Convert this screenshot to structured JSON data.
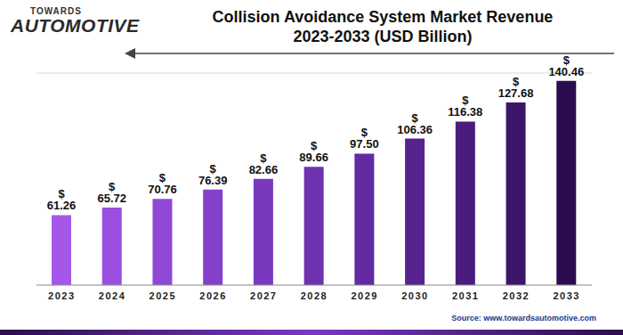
{
  "chart_data": {
    "type": "bar",
    "title": "Collision Avoidance System Market Revenue\n2023-2033 (USD Billion)",
    "logo": [
      "TOWARDS",
      "AUTOMOTIVE"
    ],
    "source": "Source: www.towardsautomotive.com",
    "categories": [
      "2023",
      "2024",
      "2025",
      "2026",
      "2027",
      "2028",
      "2029",
      "2030",
      "2031",
      "2032",
      "2033"
    ],
    "values": [
      61.26,
      65.72,
      70.76,
      76.39,
      82.66,
      89.66,
      97.5,
      106.36,
      116.38,
      127.68,
      140.46
    ],
    "value_labels": [
      "$ 61.26",
      "$ 65.72",
      "$ 70.76",
      "$ 76.39",
      "$ 82.66",
      "$ 89.66",
      "$ 97.50",
      "$ 106.36",
      "$ 116.38",
      "$ 127.68",
      "$ 140.46"
    ],
    "colors": [
      "#a457e8",
      "#9a4fe0",
      "#9048d6",
      "#8540cb",
      "#7a38bf",
      "#6e31b0",
      "#622aa0",
      "#56238f",
      "#4a1c7e",
      "#3d166b",
      "#2b0d4f"
    ],
    "ylim": [
      20,
      145
    ],
    "yticks": [
      20,
      32.5,
      45,
      57.5,
      70,
      82.5,
      95,
      107.5,
      120,
      132.5,
      145
    ],
    "grid": true,
    "data_labels": true,
    "tick_labels": "x"
  }
}
